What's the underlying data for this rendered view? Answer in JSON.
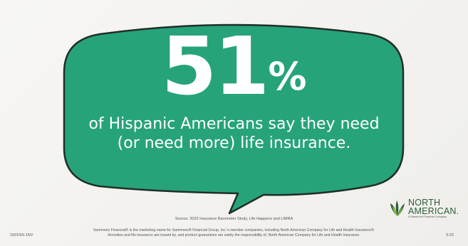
{
  "stat": {
    "number": "51",
    "percent_sign": "%"
  },
  "statement": {
    "line1": "of Hispanic Americans say they need",
    "line2": "(or need more) life insurance."
  },
  "source": "Source: 2022 Insurance Barometer Study, Life Happens and LIMRA",
  "disclaimer": {
    "line1": "Sammons Financial® is the marketing name for Sammons® Financial Group, Inc.'s member companies, including North American Company for Life and Health Insurance®.",
    "line2": "Annuities and life insurance are issued by, and product guarantees are solely the responsibility of, North American Company for Life and Health Insurance."
  },
  "codes": {
    "left": "1501NS-1NV",
    "right": "3-23"
  },
  "logo": {
    "line1": "NORTH",
    "line2": "AMERICAN.",
    "tagline": "A Sammons Financial Company",
    "icon": "north-american-logo-icon"
  },
  "colors": {
    "bubble": "#27a37a",
    "bubble_stroke": "#1f2f28",
    "text": "#ffffff",
    "logo": "#2b5d3a"
  }
}
